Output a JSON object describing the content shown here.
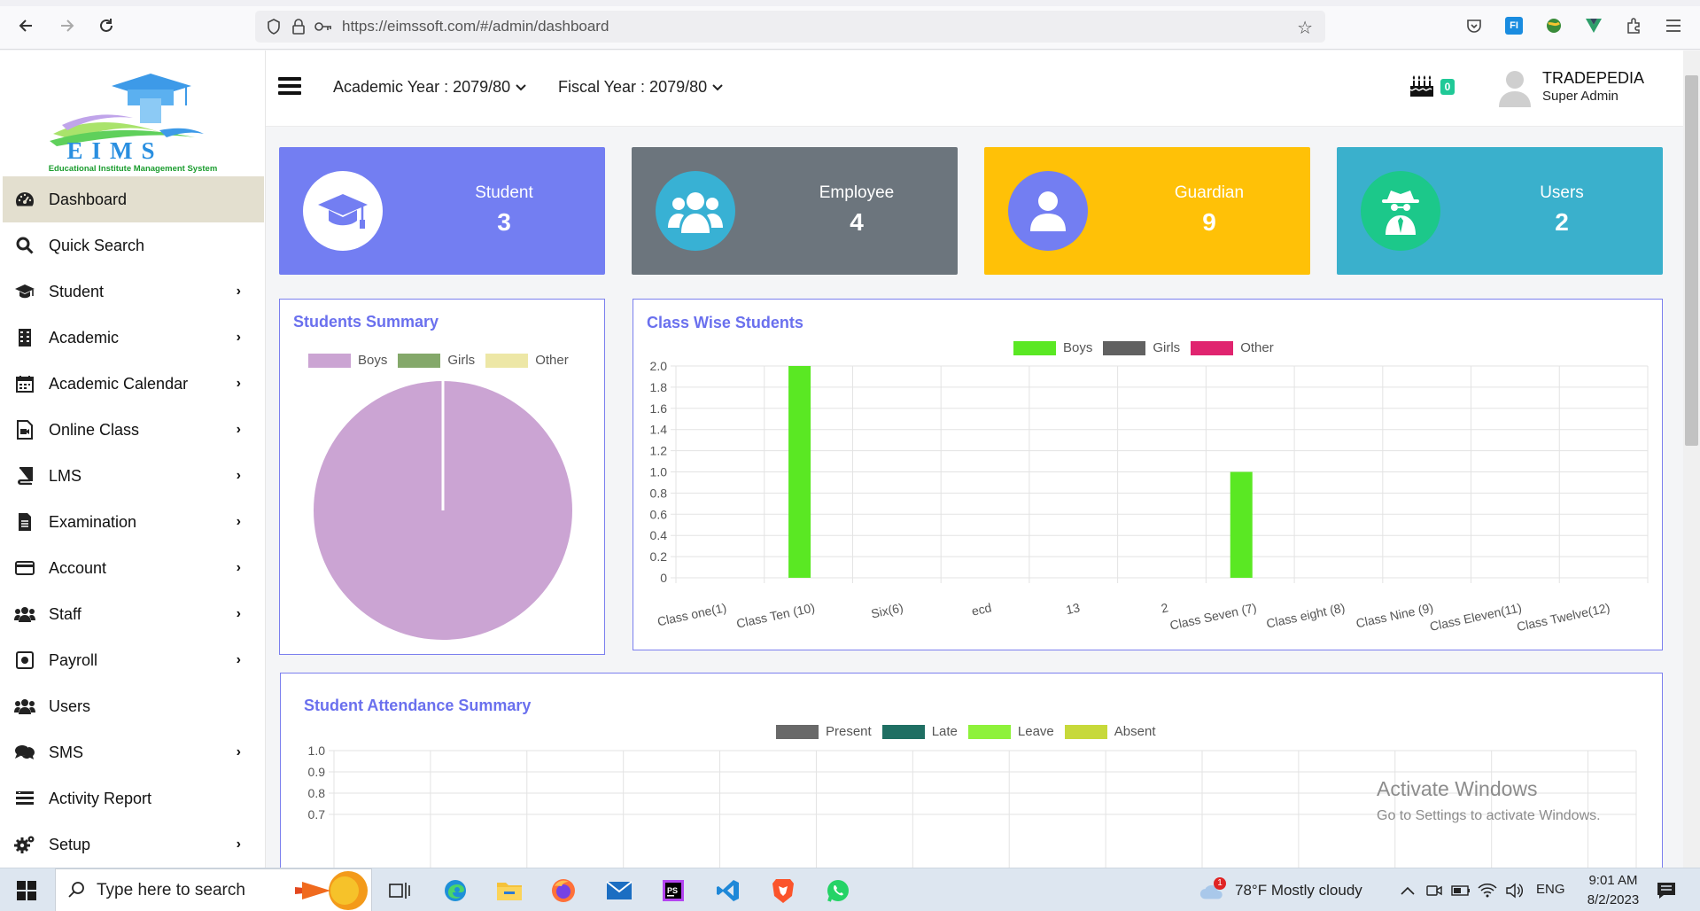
{
  "browser": {
    "url": "https://eimssoft.com/#/admin/dashboard",
    "icons": [
      "back-icon",
      "forward-icon",
      "reload-icon",
      "shield-icon",
      "lock-icon",
      "key-icon",
      "bookmark-star-icon",
      "pocket-icon",
      "extension-icon",
      "menu-icon"
    ]
  },
  "logo": {
    "name": "EIMS",
    "tagline": "Educational Institute Management System"
  },
  "sidebar": {
    "items": [
      {
        "label": "Dashboard",
        "icon": "dashboard-icon",
        "active": true,
        "has_submenu": false
      },
      {
        "label": "Quick Search",
        "icon": "search-icon",
        "active": false,
        "has_submenu": false
      },
      {
        "label": "Student",
        "icon": "graduation-cap-icon",
        "active": false,
        "has_submenu": true
      },
      {
        "label": "Academic",
        "icon": "building-icon",
        "active": false,
        "has_submenu": true
      },
      {
        "label": "Academic Calendar",
        "icon": "calendar-icon",
        "active": false,
        "has_submenu": true
      },
      {
        "label": "Online Class",
        "icon": "video-file-icon",
        "active": false,
        "has_submenu": true
      },
      {
        "label": "LMS",
        "icon": "book-icon",
        "active": false,
        "has_submenu": true
      },
      {
        "label": "Examination",
        "icon": "document-icon",
        "active": false,
        "has_submenu": true
      },
      {
        "label": "Account",
        "icon": "credit-card-icon",
        "active": false,
        "has_submenu": true
      },
      {
        "label": "Staff",
        "icon": "users-icon",
        "active": false,
        "has_submenu": true
      },
      {
        "label": "Payroll",
        "icon": "money-icon",
        "active": false,
        "has_submenu": true
      },
      {
        "label": "Users",
        "icon": "users-icon",
        "active": false,
        "has_submenu": false
      },
      {
        "label": "SMS",
        "icon": "comments-icon",
        "active": false,
        "has_submenu": true
      },
      {
        "label": "Activity Report",
        "icon": "list-icon",
        "active": false,
        "has_submenu": false
      },
      {
        "label": "Setup",
        "icon": "gear-icon",
        "active": false,
        "has_submenu": true
      }
    ]
  },
  "header": {
    "academic_year": "Academic Year : 2079/80",
    "fiscal_year": "Fiscal Year : 2079/80",
    "birthday_count": "0",
    "user_name": "TRADEPEDIA",
    "user_role": "Super Admin"
  },
  "stats": [
    {
      "title": "Student",
      "value": "3",
      "color": "#737ef2",
      "icon": "graduation-cap-icon"
    },
    {
      "title": "Employee",
      "value": "4",
      "color": "#6c757d",
      "icon": "users-icon"
    },
    {
      "title": "Guardian",
      "value": "9",
      "color": "#ffc107",
      "icon": "user-icon"
    },
    {
      "title": "Users",
      "value": "2",
      "color": "#3ab0cc",
      "icon": "spy-icon"
    }
  ],
  "students_summary": {
    "title": "Students Summary",
    "chart_data": {
      "type": "pie",
      "labels": [
        "Boys",
        "Girls",
        "Other"
      ],
      "values": [
        3,
        0,
        0
      ],
      "colors": [
        "#cba4d3",
        "#84a86a",
        "#ede7a6"
      ]
    }
  },
  "class_wise": {
    "title": "Class Wise Students",
    "chart_data": {
      "type": "bar",
      "categories": [
        "Class one(1)",
        "Class Ten (10)",
        "Six(6)",
        "ecd",
        "13",
        "2",
        "Class Seven (7)",
        "Class eight (8)",
        "Class Nine (9)",
        "Class Eleven(11)",
        "Class Twelve(12)"
      ],
      "series": [
        {
          "name": "Boys",
          "color": "#5ae823",
          "values": [
            0,
            2,
            0,
            0,
            0,
            0,
            1,
            0,
            0,
            0,
            0
          ]
        },
        {
          "name": "Girls",
          "color": "#616161",
          "values": [
            0,
            0,
            0,
            0,
            0,
            0,
            0,
            0,
            0,
            0,
            0
          ]
        },
        {
          "name": "Other",
          "color": "#e0246f",
          "values": [
            0,
            0,
            0,
            0,
            0,
            0,
            0,
            0,
            0,
            0,
            0
          ]
        }
      ],
      "ylim": [
        0,
        2
      ],
      "yticks": [
        "2.0",
        "1.8",
        "1.6",
        "1.4",
        "1.2",
        "1.0",
        "0.8",
        "0.6",
        "0.4",
        "0.2",
        "0"
      ],
      "grid": true,
      "legend": "top-center"
    }
  },
  "attendance": {
    "title": "Student Attendance Summary",
    "chart_data": {
      "type": "bar",
      "series": [
        {
          "name": "Present",
          "color": "#696969"
        },
        {
          "name": "Late",
          "color": "#1f6f63"
        },
        {
          "name": "Leave",
          "color": "#8ef23a"
        },
        {
          "name": "Absent",
          "color": "#c7d93a"
        }
      ],
      "yticks": [
        "1.0",
        "0.9",
        "0.8",
        "0.7"
      ],
      "ylim": [
        0,
        1
      ],
      "grid": true,
      "legend": "top-center"
    }
  },
  "watermark": {
    "line1": "Activate Windows",
    "line2": "Go to Settings to activate Windows."
  },
  "taskbar": {
    "search_placeholder": "Type here to search",
    "weather": "78°F  Mostly cloudy",
    "weather_badge": "1",
    "language": "ENG",
    "time": "9:01 AM",
    "date": "8/2/2023"
  }
}
